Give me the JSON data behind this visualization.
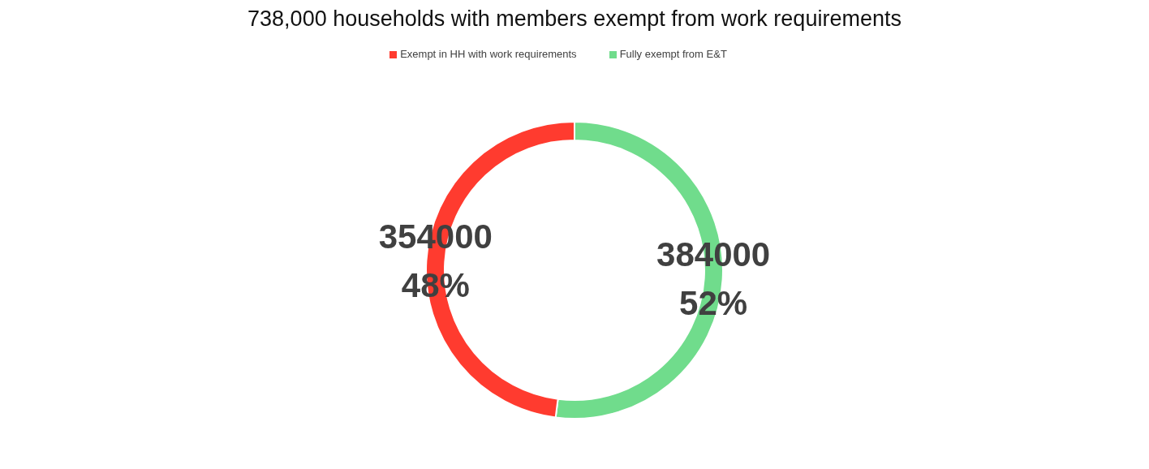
{
  "chart_data": {
    "type": "donut",
    "title": "738,000 households with members exempt from work requirements",
    "categories": [
      "Fully exempt from E&T",
      "Exempt in HH with work requirements"
    ],
    "values": [
      384000,
      354000
    ],
    "colors": [
      "#70dc8c",
      "#ff3b2f"
    ],
    "value_labels": [
      "384000\n52%",
      "354000\n48%"
    ],
    "legend": "top"
  }
}
